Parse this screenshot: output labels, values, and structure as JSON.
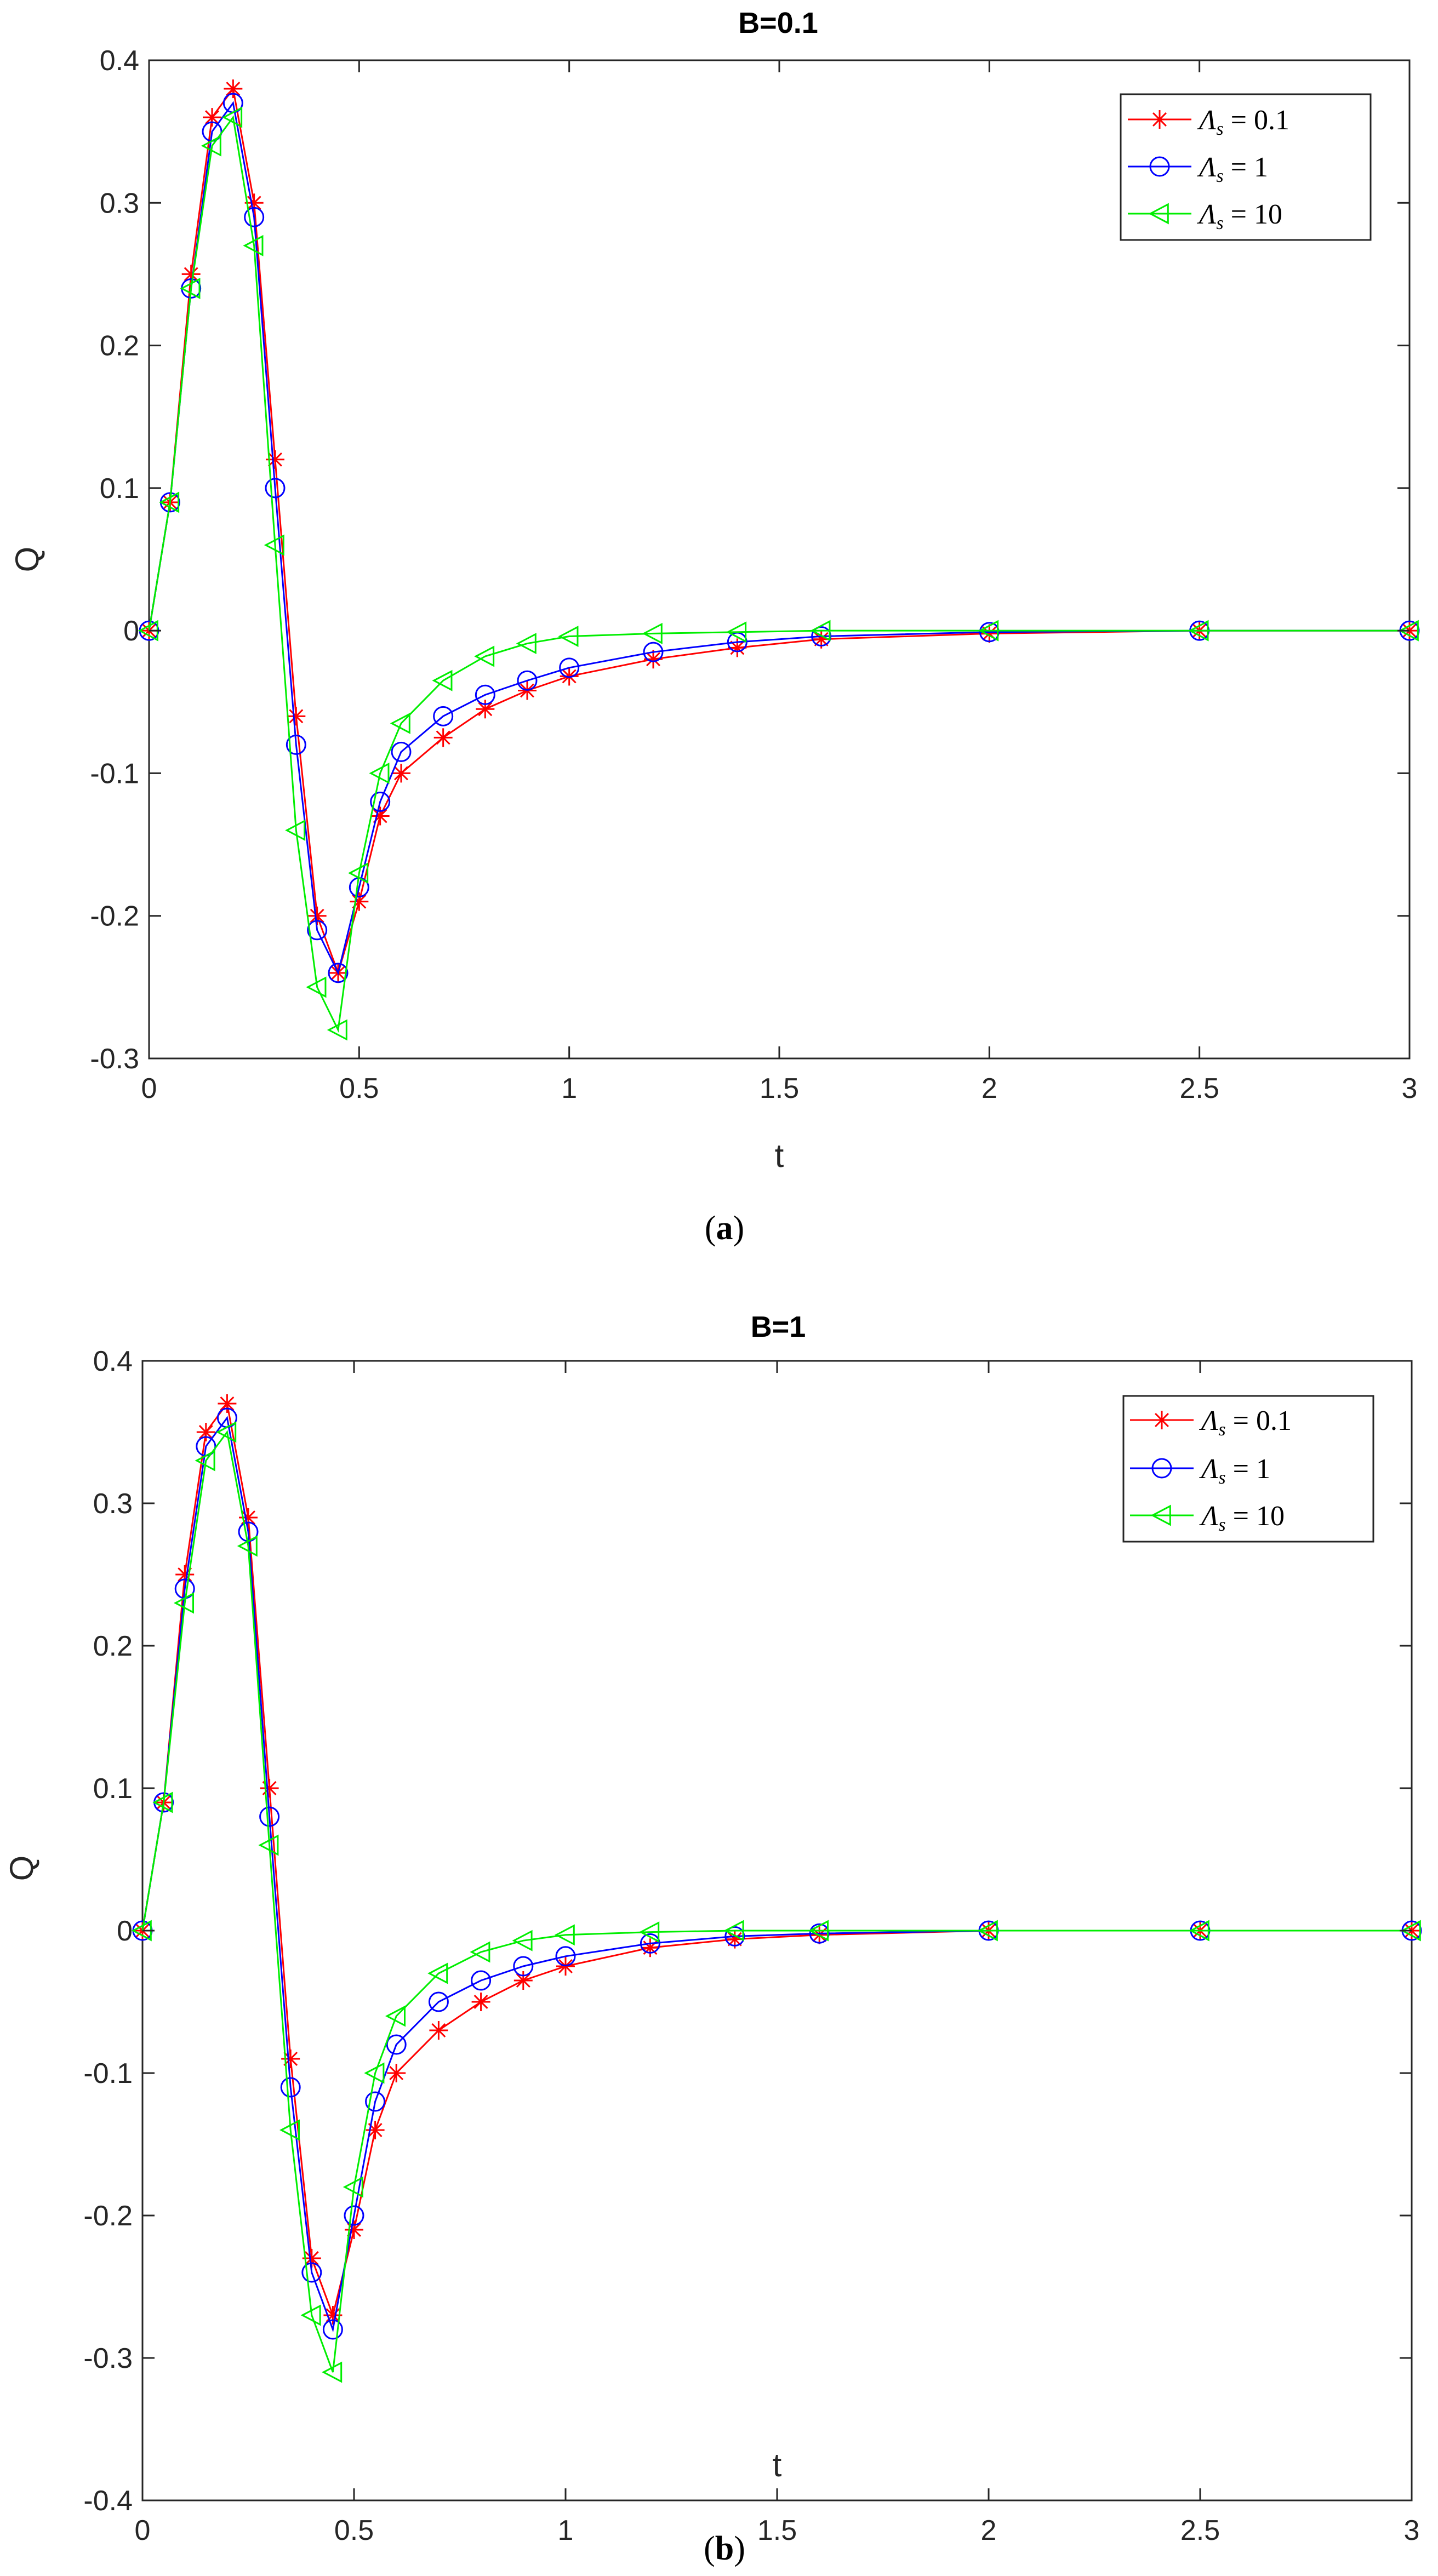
{
  "chart_data": [
    {
      "type": "line",
      "panel_caption": "(a)",
      "caption_letter": "a",
      "title": "B=0.1",
      "xlabel": "t",
      "ylabel": "Q",
      "xlim": [
        0,
        3
      ],
      "ylim": [
        -0.3,
        0.4
      ],
      "xticks": [
        "0",
        "0.5",
        "1",
        "1.5",
        "2",
        "2.5",
        "3"
      ],
      "yticks": [
        "-0.3",
        "-0.2",
        "-0.1",
        "0",
        "0.1",
        "0.2",
        "0.3",
        "0.4"
      ],
      "grid": false,
      "legend_position": "top-right",
      "series": [
        {
          "name": "Λs = 0.1",
          "legend_prefix": "Λ",
          "legend_sub": "s",
          "legend_value": " = 0.1",
          "marker": "asterisk",
          "color": "#ff0000",
          "x": [
            0,
            0.05,
            0.1,
            0.15,
            0.2,
            0.25,
            0.3,
            0.35,
            0.4,
            0.45,
            0.5,
            0.55,
            0.6,
            0.7,
            0.8,
            0.9,
            1.0,
            1.2,
            1.4,
            1.6,
            2.0,
            2.5,
            3.0
          ],
          "y": [
            0,
            0.09,
            0.25,
            0.36,
            0.38,
            0.3,
            0.12,
            -0.06,
            -0.2,
            -0.24,
            -0.19,
            -0.13,
            -0.1,
            -0.075,
            -0.055,
            -0.042,
            -0.032,
            -0.02,
            -0.012,
            -0.006,
            -0.002,
            0,
            0
          ]
        },
        {
          "name": "Λs = 1",
          "legend_prefix": "Λ",
          "legend_sub": "s",
          "legend_value": " = 1",
          "marker": "circle",
          "color": "#0000ff",
          "x": [
            0,
            0.05,
            0.1,
            0.15,
            0.2,
            0.25,
            0.3,
            0.35,
            0.4,
            0.45,
            0.5,
            0.55,
            0.6,
            0.7,
            0.8,
            0.9,
            1.0,
            1.2,
            1.4,
            1.6,
            2.0,
            2.5,
            3.0
          ],
          "y": [
            0,
            0.09,
            0.24,
            0.35,
            0.37,
            0.29,
            0.1,
            -0.08,
            -0.21,
            -0.24,
            -0.18,
            -0.12,
            -0.085,
            -0.06,
            -0.045,
            -0.035,
            -0.026,
            -0.015,
            -0.008,
            -0.004,
            -0.001,
            0,
            0
          ]
        },
        {
          "name": "Λs = 10",
          "legend_prefix": "Λ",
          "legend_sub": "s",
          "legend_value": " = 10",
          "marker": "triangle-left",
          "color": "#00ee00",
          "x": [
            0,
            0.05,
            0.1,
            0.15,
            0.2,
            0.25,
            0.3,
            0.35,
            0.4,
            0.45,
            0.5,
            0.55,
            0.6,
            0.7,
            0.8,
            0.9,
            1.0,
            1.2,
            1.4,
            1.6,
            2.0,
            2.5,
            3.0
          ],
          "y": [
            0,
            0.09,
            0.24,
            0.34,
            0.36,
            0.27,
            0.06,
            -0.14,
            -0.25,
            -0.28,
            -0.17,
            -0.1,
            -0.065,
            -0.035,
            -0.018,
            -0.009,
            -0.004,
            -0.002,
            -0.001,
            0,
            0,
            0,
            0
          ]
        }
      ]
    },
    {
      "type": "line",
      "panel_caption": "(b)",
      "caption_letter": "b",
      "title": "B=1",
      "xlabel": "t",
      "ylabel": "Q",
      "xlim": [
        0,
        3
      ],
      "ylim": [
        -0.4,
        0.4
      ],
      "xticks": [
        "0",
        "0.5",
        "1",
        "1.5",
        "2",
        "2.5",
        "3"
      ],
      "yticks": [
        "-0.4",
        "-0.3",
        "-0.2",
        "-0.1",
        "0",
        "0.1",
        "0.2",
        "0.3",
        "0.4"
      ],
      "grid": false,
      "legend_position": "top-right",
      "series": [
        {
          "name": "Λs = 0.1",
          "legend_prefix": "Λ",
          "legend_sub": "s",
          "legend_value": " = 0.1",
          "marker": "asterisk",
          "color": "#ff0000",
          "x": [
            0,
            0.05,
            0.1,
            0.15,
            0.2,
            0.25,
            0.3,
            0.35,
            0.4,
            0.45,
            0.5,
            0.55,
            0.6,
            0.7,
            0.8,
            0.9,
            1.0,
            1.2,
            1.4,
            1.6,
            2.0,
            2.5,
            3.0
          ],
          "y": [
            0,
            0.09,
            0.25,
            0.35,
            0.37,
            0.29,
            0.1,
            -0.09,
            -0.23,
            -0.27,
            -0.21,
            -0.14,
            -0.1,
            -0.07,
            -0.05,
            -0.035,
            -0.025,
            -0.012,
            -0.006,
            -0.003,
            0,
            0,
            0
          ]
        },
        {
          "name": "Λs = 1",
          "legend_prefix": "Λ",
          "legend_sub": "s",
          "legend_value": " = 1",
          "marker": "circle",
          "color": "#0000ff",
          "x": [
            0,
            0.05,
            0.1,
            0.15,
            0.2,
            0.25,
            0.3,
            0.35,
            0.4,
            0.45,
            0.5,
            0.55,
            0.6,
            0.7,
            0.8,
            0.9,
            1.0,
            1.2,
            1.4,
            1.6,
            2.0,
            2.5,
            3.0
          ],
          "y": [
            0,
            0.09,
            0.24,
            0.34,
            0.36,
            0.28,
            0.08,
            -0.11,
            -0.24,
            -0.28,
            -0.2,
            -0.12,
            -0.08,
            -0.05,
            -0.035,
            -0.025,
            -0.018,
            -0.009,
            -0.004,
            -0.002,
            0,
            0,
            0
          ]
        },
        {
          "name": "Λs = 10",
          "legend_prefix": "Λ",
          "legend_sub": "s",
          "legend_value": " = 10",
          "marker": "triangle-left",
          "color": "#00ee00",
          "x": [
            0,
            0.05,
            0.1,
            0.15,
            0.2,
            0.25,
            0.3,
            0.35,
            0.4,
            0.45,
            0.5,
            0.55,
            0.6,
            0.7,
            0.8,
            0.9,
            1.0,
            1.2,
            1.4,
            1.6,
            2.0,
            2.5,
            3.0
          ],
          "y": [
            0,
            0.09,
            0.23,
            0.33,
            0.35,
            0.27,
            0.06,
            -0.14,
            -0.27,
            -0.31,
            -0.18,
            -0.1,
            -0.06,
            -0.03,
            -0.015,
            -0.007,
            -0.003,
            -0.001,
            0,
            0,
            0,
            0,
            0
          ]
        }
      ]
    }
  ]
}
